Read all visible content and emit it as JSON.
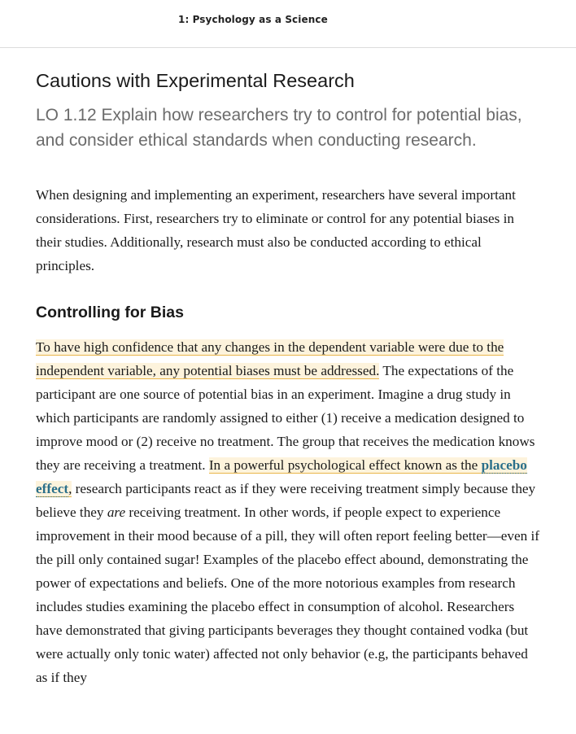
{
  "header": {
    "chapter_title": "1: Psychology as a Science"
  },
  "section": {
    "title": "Cautions with Experimental Research",
    "learning_objective": "LO 1.12 Explain how researchers try to control for potential bias, and consider ethical standards when conducting research."
  },
  "intro_paragraph": "When designing and implementing an experiment, researchers have several important considerations. First, researchers try to eliminate or control for any potential biases in their studies. Additionally, research must also be conducted according to ethical principles.",
  "subsection": {
    "title": "Controlling for Bias"
  },
  "body": {
    "highlight_1": "To have high confidence that any changes in the dependent variable were due to the independent variable, any potential biases must be addressed.",
    "text_1": " The expectations of the participant are one source of potential bias in an experiment. Imagine a drug study in which participants are randomly assigned to either (1) receive a medication designed to improve mood or (2) receive no treatment. The group that receives the medication knows they are receiving a treatment. ",
    "highlight_2": "In a powerful psychological effect known as the ",
    "term": "placebo effect",
    "highlight_2_end": ",",
    "text_2": " research participants react as if they were receiving treatment simply because they believe they ",
    "emphasis": "are",
    "text_3": " receiving treatment. In other words, if people expect to experience improvement in their mood because of a pill, they will often report feeling better—even if the pill only contained sugar! Examples of the placebo effect abound, demonstrating the power of expectations and beliefs. One of the more notorious examples from research includes studies examining the placebo effect in consumption of alcohol. Researchers have demonstrated that giving participants beverages they thought contained vodka (but were actually only tonic water) affected not only behavior (e.g, the participants behaved as if they"
  }
}
